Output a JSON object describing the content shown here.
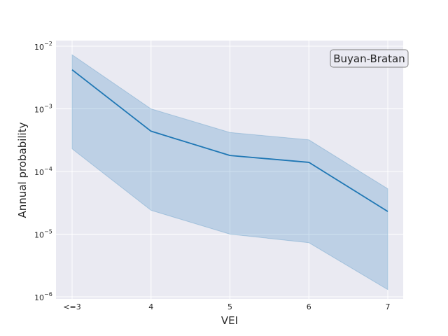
{
  "chart_data": {
    "type": "line",
    "title": "",
    "xlabel": "VEI",
    "ylabel": "Annual probability",
    "categories": [
      "<=3",
      "4",
      "5",
      "6",
      "7"
    ],
    "yscale": "log",
    "ylim": [
      9e-07,
      0.01
    ],
    "yticks": [
      {
        "value": 1e-06,
        "base": "10",
        "exp": "−6"
      },
      {
        "value": 1e-05,
        "base": "10",
        "exp": "−5"
      },
      {
        "value": 0.0001,
        "base": "10",
        "exp": "−4"
      },
      {
        "value": 0.001,
        "base": "10",
        "exp": "−3"
      },
      {
        "value": 0.01,
        "base": "10",
        "exp": "−2"
      }
    ],
    "grid": true,
    "series": [
      {
        "values": [
          0.0042,
          0.00044,
          0.00018,
          0.00014,
          2.3e-05
        ],
        "lower": [
          0.00023,
          2.4e-05,
          1e-05,
          7.3e-06,
          1.3e-06
        ],
        "upper": [
          0.0073,
          0.001,
          0.00042,
          0.00032,
          5.3e-05
        ]
      }
    ],
    "annotation": "Buyan-Bratan",
    "annotation_position": "top-right",
    "colors": {
      "line": "#1f77b4",
      "band": "#1f77b4",
      "plot_background": "#eaeaf2",
      "grid": "#ffffff"
    }
  }
}
